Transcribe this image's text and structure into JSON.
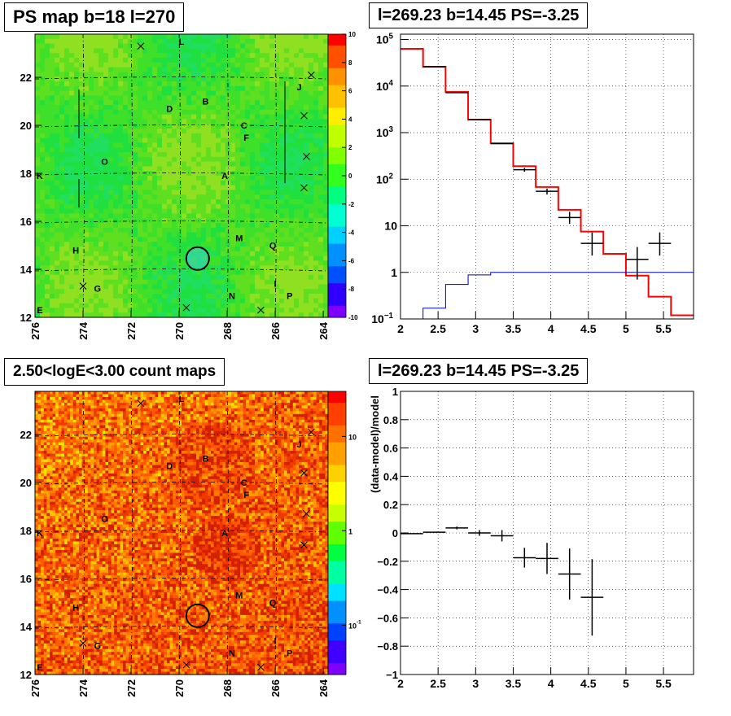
{
  "chart_data": [
    {
      "type": "heatmap",
      "title": "PS map b=18 l=270",
      "x_ticks": [
        276,
        274,
        272,
        270,
        268,
        266,
        264
      ],
      "y_ticks": [
        12,
        14,
        16,
        18,
        20,
        22
      ],
      "xlim": [
        276,
        263.8
      ],
      "ylim": [
        12,
        23.8
      ],
      "colorbar": {
        "min": -10,
        "max": 10,
        "ticks": [
          10,
          8,
          6,
          4,
          2,
          0,
          -2,
          -4,
          -6,
          -8,
          -10
        ]
      },
      "labels": [
        {
          "text": "L",
          "l": 269.9,
          "b": 23.5
        },
        {
          "text": "J",
          "l": 265.0,
          "b": 21.6
        },
        {
          "text": "B",
          "l": 268.9,
          "b": 21.0
        },
        {
          "text": "D",
          "l": 270.4,
          "b": 20.7
        },
        {
          "text": "C",
          "l": 267.3,
          "b": 20.0
        },
        {
          "text": "F",
          "l": 267.2,
          "b": 19.5
        },
        {
          "text": "O",
          "l": 273.1,
          "b": 18.5
        },
        {
          "text": "K",
          "l": 275.8,
          "b": 17.9
        },
        {
          "text": "A",
          "l": 268.1,
          "b": 17.9
        },
        {
          "text": "M",
          "l": 267.5,
          "b": 15.3
        },
        {
          "text": "Q",
          "l": 266.1,
          "b": 15.0
        },
        {
          "text": "H",
          "l": 274.3,
          "b": 14.8
        },
        {
          "text": "G",
          "l": 273.4,
          "b": 13.2
        },
        {
          "text": "N",
          "l": 267.8,
          "b": 12.9
        },
        {
          "text": "I",
          "l": 266.0,
          "b": 13.4
        },
        {
          "text": "P",
          "l": 265.4,
          "b": 12.9
        },
        {
          "text": "E",
          "l": 275.8,
          "b": 12.3
        }
      ],
      "markers": [
        {
          "l": 271.6,
          "b": 23.3
        },
        {
          "l": 264.5,
          "b": 22.1
        },
        {
          "l": 264.8,
          "b": 20.4
        },
        {
          "l": 264.7,
          "b": 18.7
        },
        {
          "l": 264.8,
          "b": 17.4
        },
        {
          "l": 274.0,
          "b": 13.3
        },
        {
          "l": 269.7,
          "b": 12.4
        },
        {
          "l": 266.6,
          "b": 12.3
        }
      ],
      "circle": {
        "l": 269.23,
        "b": 14.45
      }
    },
    {
      "type": "line",
      "title": "l=269.23 b=14.45 PS=-3.25",
      "xlim": [
        2,
        5.9
      ],
      "ylim": [
        0.1,
        130000
      ],
      "yscale": "log",
      "x_ticks": [
        2,
        2.5,
        3,
        3.5,
        4,
        4.5,
        5,
        5.5
      ],
      "y_ticks": [
        {
          "v": 0.1,
          "label": "10",
          "sup": "−1"
        },
        {
          "v": 1,
          "label": "1",
          "sup": ""
        },
        {
          "v": 10,
          "label": "10",
          "sup": ""
        },
        {
          "v": 100,
          "label": "10",
          "sup": "2"
        },
        {
          "v": 1000,
          "label": "10",
          "sup": "3"
        },
        {
          "v": 10000,
          "label": "10",
          "sup": "4"
        },
        {
          "v": 100000,
          "label": "10",
          "sup": "5"
        }
      ],
      "grid": true,
      "bin_edges": [
        2.0,
        2.3,
        2.6,
        2.9,
        3.2,
        3.5,
        3.8,
        4.1,
        4.4,
        4.7,
        5.0,
        5.3,
        5.6,
        5.9
      ],
      "series": [
        {
          "color": "#ff0000",
          "values": [
            63000,
            26000,
            7500,
            1900,
            590,
            190,
            68,
            22,
            7.5,
            2.5,
            0.85,
            0.3,
            0.12
          ]
        },
        {
          "color": "#0000cc",
          "values": [
            0.1,
            0.17,
            0.55,
            0.88,
            1.0,
            1.0,
            1.0,
            1.0,
            1.0,
            1.0,
            1.0,
            1.0,
            1.0
          ]
        },
        {
          "color": "#000000",
          "values": [
            null,
            26000,
            7200,
            1900,
            580,
            160,
            55,
            15,
            4.2,
            null,
            1.9,
            4.2,
            null
          ],
          "err_lo": [
            null,
            0,
            0,
            0,
            0,
            15,
            8,
            4,
            1.9,
            null,
            1.2,
            1.9,
            null
          ],
          "err_hi": [
            null,
            0,
            0,
            0,
            0,
            15,
            8,
            5,
            3.0,
            null,
            1.6,
            3.0,
            null
          ]
        }
      ]
    },
    {
      "type": "heatmap",
      "title": "2.50<logE<3.00 count maps",
      "x_ticks": [
        276,
        274,
        272,
        270,
        268,
        266,
        264
      ],
      "y_ticks": [
        12,
        14,
        16,
        18,
        20,
        22
      ],
      "xlim": [
        276,
        263.8
      ],
      "ylim": [
        12,
        23.8
      ],
      "colorbar": {
        "scale": "log",
        "min": 0.03,
        "max": 30,
        "ticks": [
          {
            "v": 10,
            "label": "10",
            "sup": ""
          },
          {
            "v": 1,
            "label": "1",
            "sup": ""
          },
          {
            "v": 0.1,
            "label": "10",
            "sup": "-1"
          }
        ]
      }
    },
    {
      "type": "scatter",
      "title": "l=269.23 b=14.45 PS=-3.25",
      "ylabel": "(data-model)/model",
      "xlim": [
        2,
        5.9
      ],
      "ylim": [
        -1,
        1
      ],
      "x_ticks": [
        2,
        2.5,
        3,
        3.5,
        4,
        4.5,
        5,
        5.5
      ],
      "y_ticks": [
        -1,
        -0.8,
        -0.6,
        -0.4,
        -0.2,
        0,
        0.2,
        0.4,
        0.6,
        0.8,
        1
      ],
      "grid": true,
      "points": [
        {
          "x": 2.15,
          "y": -0.005,
          "xerr": 0.15,
          "yerr": 0.0
        },
        {
          "x": 2.45,
          "y": 0.005,
          "xerr": 0.15,
          "yerr": 0.0
        },
        {
          "x": 2.75,
          "y": 0.035,
          "xerr": 0.15,
          "yerr": 0.01
        },
        {
          "x": 3.05,
          "y": 0.0,
          "xerr": 0.15,
          "yerr": 0.02
        },
        {
          "x": 3.35,
          "y": -0.02,
          "xerr": 0.15,
          "yerr": 0.04
        },
        {
          "x": 3.65,
          "y": -0.175,
          "xerr": 0.15,
          "yerr": 0.07
        },
        {
          "x": 3.95,
          "y": -0.18,
          "xerr": 0.15,
          "yerr": 0.11
        },
        {
          "x": 4.25,
          "y": -0.29,
          "xerr": 0.15,
          "yerr": 0.18
        },
        {
          "x": 4.55,
          "y": -0.455,
          "xerr": 0.15,
          "yerr": 0.27
        }
      ]
    }
  ]
}
